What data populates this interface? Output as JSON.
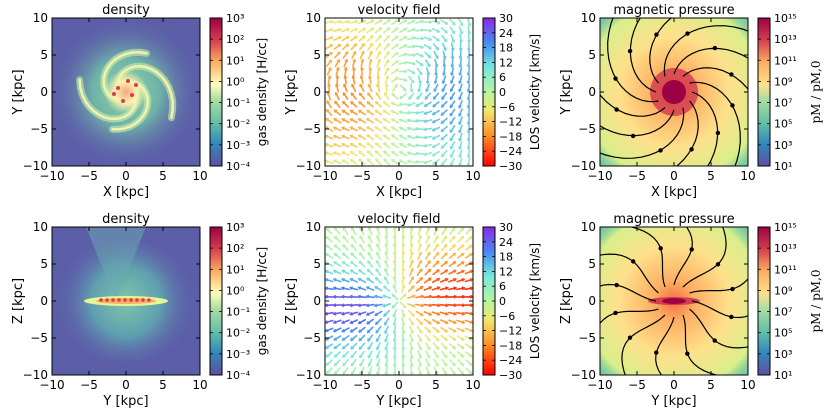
{
  "figure": {
    "rows": [
      {
        "row": "top",
        "xlabel": "X [kpc]",
        "ylabel": "Y [kpc]"
      },
      {
        "row": "bottom",
        "xlabel": "Y [kpc]",
        "ylabel": "Z [kpc]"
      }
    ]
  },
  "chart_data": [
    {
      "type": "heatmap",
      "panel": "density-xy",
      "title": "density",
      "xlabel": "X [kpc]",
      "ylabel": "Y [kpc]",
      "xlim": [
        -10,
        10
      ],
      "ylim": [
        -10,
        10
      ],
      "xticks": [
        "−10",
        "−5",
        "0",
        "5",
        "10"
      ],
      "yticks": [
        "−10",
        "−5",
        "0",
        "5",
        "10"
      ],
      "colorbar": {
        "label": "gas density [H/cc]",
        "ticks": [
          "10⁻⁴",
          "10⁻³",
          "10⁻²",
          "10⁻¹",
          "10⁰",
          "10¹",
          "10²",
          "10³"
        ],
        "range_log10": [
          -4,
          3
        ]
      },
      "colors": {
        "low": "#5c5fa8",
        "mid": "#f2f3a8",
        "high": "#9e0142"
      }
    },
    {
      "type": "heatmap",
      "panel": "velocity-xy",
      "title": "velocity field",
      "xlabel": "X [kpc]",
      "ylabel": "Y [kpc]",
      "xlim": [
        -10,
        10
      ],
      "ylim": [
        -10,
        10
      ],
      "xticks": [
        "−10",
        "−5",
        "0",
        "5",
        "10"
      ],
      "yticks": [
        "−10",
        "−5",
        "0",
        "5",
        "10"
      ],
      "colorbar": {
        "label": "LOS velocity [km/s]",
        "ticks": [
          "−30",
          "−24",
          "−18",
          "−12",
          "−6",
          "0",
          "6",
          "12",
          "18",
          "24",
          "30"
        ],
        "range": [
          -30,
          30
        ]
      },
      "colors": {
        "low": "#ff0000",
        "mid": "#b7f5a0",
        "high": "#8a2be2"
      }
    },
    {
      "type": "heatmap",
      "panel": "magnetic-xy",
      "title": "magnetic pressure",
      "xlabel": "X [kpc]",
      "ylabel": "Y [kpc]",
      "xlim": [
        -10,
        10
      ],
      "ylim": [
        -10,
        10
      ],
      "xticks": [
        "−10",
        "−5",
        "0",
        "5",
        "10"
      ],
      "yticks": [
        "−10",
        "−5",
        "0",
        "5",
        "10"
      ],
      "colorbar": {
        "label": "pM / pM,0",
        "ticks": [
          "10¹",
          "10³",
          "10⁵",
          "10⁷",
          "10⁹",
          "10¹¹",
          "10¹³",
          "10¹⁵"
        ],
        "range_log10": [
          1,
          15
        ]
      },
      "colors": {
        "low": "#3288bd",
        "mid": "#fee08b",
        "high": "#9e0142"
      }
    },
    {
      "type": "heatmap",
      "panel": "density-yz",
      "title": "density",
      "xlabel": "Y [kpc]",
      "ylabel": "Z [kpc]",
      "xlim": [
        -10,
        10
      ],
      "ylim": [
        -10,
        10
      ],
      "xticks": [
        "−10",
        "−5",
        "0",
        "5",
        "10"
      ],
      "yticks": [
        "−10",
        "−5",
        "0",
        "5",
        "10"
      ],
      "colorbar": {
        "label": "gas density [H/cc]",
        "ticks": [
          "10⁻⁴",
          "10⁻³",
          "10⁻²",
          "10⁻¹",
          "10⁰",
          "10¹",
          "10²",
          "10³"
        ],
        "range_log10": [
          -4,
          3
        ]
      },
      "colors": {
        "low": "#5c5fa8",
        "mid": "#f2f3a8",
        "high": "#9e0142"
      }
    },
    {
      "type": "heatmap",
      "panel": "velocity-yz",
      "title": "velocity field",
      "xlabel": "Y [kpc]",
      "ylabel": "Z [kpc]",
      "xlim": [
        -10,
        10
      ],
      "ylim": [
        -10,
        10
      ],
      "xticks": [
        "−10",
        "−5",
        "0",
        "5",
        "10"
      ],
      "yticks": [
        "−10",
        "−5",
        "0",
        "5",
        "10"
      ],
      "colorbar": {
        "label": "LOS velocity [km/s]",
        "ticks": [
          "−30",
          "−24",
          "−18",
          "−12",
          "−6",
          "0",
          "6",
          "12",
          "18",
          "24",
          "30"
        ],
        "range": [
          -30,
          30
        ]
      },
      "colors": {
        "low": "#ff0000",
        "mid": "#b7f5a0",
        "high": "#8a2be2"
      }
    },
    {
      "type": "heatmap",
      "panel": "magnetic-yz",
      "title": "magnetic pressure",
      "xlabel": "Y [kpc]",
      "ylabel": "Z [kpc]",
      "xlim": [
        -10,
        10
      ],
      "ylim": [
        -10,
        10
      ],
      "xticks": [
        "−10",
        "−5",
        "0",
        "5",
        "10"
      ],
      "yticks": [
        "−10",
        "−5",
        "0",
        "5",
        "10"
      ],
      "colorbar": {
        "label": "pM / pM,0",
        "ticks": [
          "10¹",
          "10³",
          "10⁵",
          "10⁷",
          "10⁹",
          "10¹¹",
          "10¹³",
          "10¹⁵"
        ],
        "range_log10": [
          1,
          15
        ]
      },
      "colors": {
        "low": "#3288bd",
        "mid": "#fee08b",
        "high": "#9e0142"
      }
    }
  ]
}
